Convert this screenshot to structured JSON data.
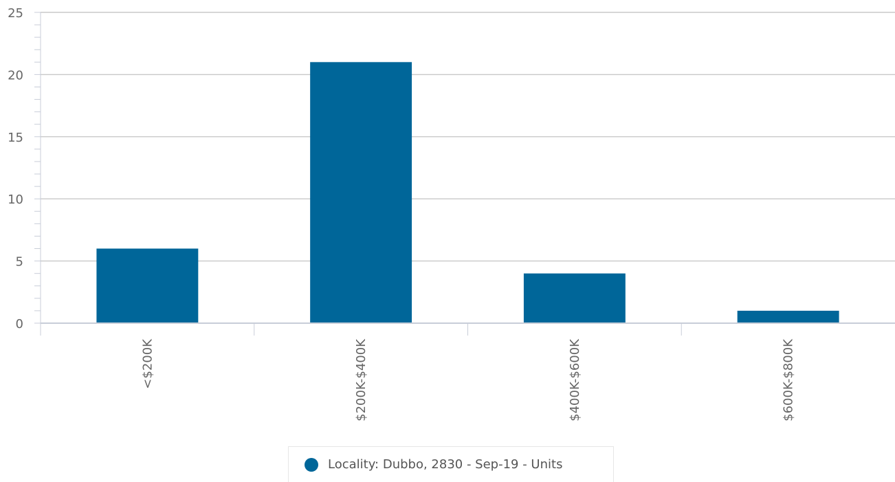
{
  "chart_data": {
    "type": "bar",
    "categories": [
      "<$200K",
      "$200K-$400K",
      "$400K-$600K",
      "$600K-$800K"
    ],
    "series": [
      {
        "name": "Locality: Dubbo, 2830 - Sep-19 - Units",
        "values": [
          6,
          21,
          4,
          1
        ],
        "color": "#006699"
      }
    ],
    "ylim": [
      0,
      25
    ],
    "yticks": [
      0,
      5,
      10,
      15,
      20,
      25
    ],
    "grid": true,
    "legend_position": "bottom-center"
  },
  "colors": {
    "bar": "#006699",
    "grid": "#c8c8c8",
    "axis": "#c8cdd8",
    "text": "#666666"
  }
}
